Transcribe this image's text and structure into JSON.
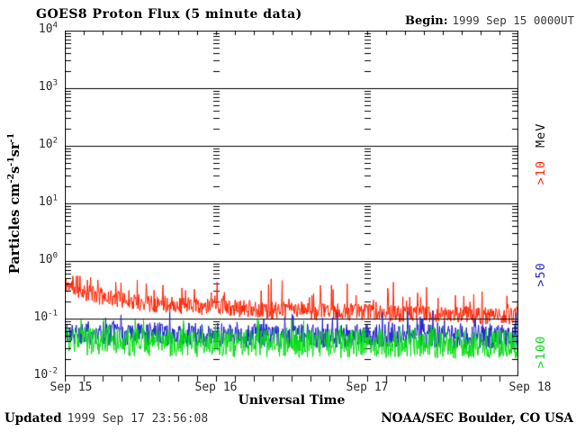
{
  "header": {
    "title": "GOES8 Proton Flux (5 minute data)",
    "begin_label": "Begin:",
    "begin_value": "1999 Sep 15 0000UT"
  },
  "footer": {
    "updated_label": "Updated",
    "updated_value": "1999 Sep 17 23:56:08",
    "source": "NOAA/SEC Boulder, CO USA"
  },
  "chart_data": {
    "type": "line",
    "title": "GOES8 Proton Flux (5 minute data)",
    "xlabel": "Universal Time",
    "ylabel_parts": [
      {
        "text": "Particles cm"
      },
      {
        "sup": "-2"
      },
      {
        "text": "s"
      },
      {
        "sup": "-1"
      },
      {
        "text": "sr"
      },
      {
        "sup": "-1"
      }
    ],
    "x_ticks": [
      "Sep 15",
      "Sep 16",
      "Sep 17",
      "Sep 18"
    ],
    "x_minor_tick_hours": 3,
    "x_range_hours": 72,
    "cadence_minutes": 5,
    "y_scale": "log",
    "y_tick_exponents": [
      4,
      3,
      2,
      1,
      0,
      -1,
      -2
    ],
    "ylim": [
      0.01,
      10000
    ],
    "grid": {
      "horizontal_major": true,
      "vertical_day_boundaries_dashed": true
    },
    "legend_position": "right-rotated",
    "series": [
      {
        "name": ">10 MeV",
        "label": ">10",
        "unit": "MeV",
        "color": "#ff2200",
        "anchor_step_hours": 2,
        "median_levels": [
          0.4,
          0.32,
          0.27,
          0.24,
          0.22,
          0.2,
          0.19,
          0.18,
          0.18,
          0.17,
          0.17,
          0.16,
          0.16,
          0.15,
          0.15,
          0.15,
          0.14,
          0.14,
          0.14,
          0.14,
          0.13,
          0.13,
          0.13,
          0.13,
          0.13,
          0.13,
          0.12,
          0.12,
          0.12,
          0.12,
          0.12,
          0.12,
          0.12,
          0.11,
          0.11,
          0.11,
          0.11
        ],
        "scatter_dec": 0.3,
        "spike_prob": 0.1,
        "spike_dec": 0.45,
        "range": [
          0.08,
          0.55
        ]
      },
      {
        "name": ">50 MeV",
        "label": ">50",
        "unit": "",
        "color": "#2222cc",
        "anchor_step_hours": 2,
        "median_levels": [
          0.058,
          0.056,
          0.055,
          0.055,
          0.054,
          0.054,
          0.053,
          0.053,
          0.053,
          0.052,
          0.052,
          0.052,
          0.052,
          0.051,
          0.051,
          0.051,
          0.051,
          0.05,
          0.05,
          0.05,
          0.05,
          0.05,
          0.05,
          0.05,
          0.05,
          0.049,
          0.049,
          0.049,
          0.049,
          0.049,
          0.049,
          0.048,
          0.048,
          0.048,
          0.048,
          0.048,
          0.048
        ],
        "scatter_dec": 0.42,
        "spike_prob": 0.08,
        "spike_dec": 0.3,
        "range": [
          0.028,
          0.16
        ]
      },
      {
        "name": ">100 MeV",
        "label": ">100",
        "unit": "",
        "color": "#00dd11",
        "anchor_step_hours": 2,
        "median_levels": [
          0.042,
          0.041,
          0.04,
          0.04,
          0.04,
          0.039,
          0.039,
          0.039,
          0.039,
          0.038,
          0.038,
          0.038,
          0.038,
          0.038,
          0.038,
          0.038,
          0.038,
          0.038,
          0.038,
          0.037,
          0.037,
          0.037,
          0.037,
          0.037,
          0.037,
          0.037,
          0.037,
          0.037,
          0.037,
          0.037,
          0.036,
          0.036,
          0.036,
          0.036,
          0.036,
          0.036,
          0.036
        ],
        "scatter_dec": 0.5,
        "spike_prob": 0.06,
        "spike_dec": 0.25,
        "range": [
          0.019,
          0.095
        ]
      }
    ]
  }
}
